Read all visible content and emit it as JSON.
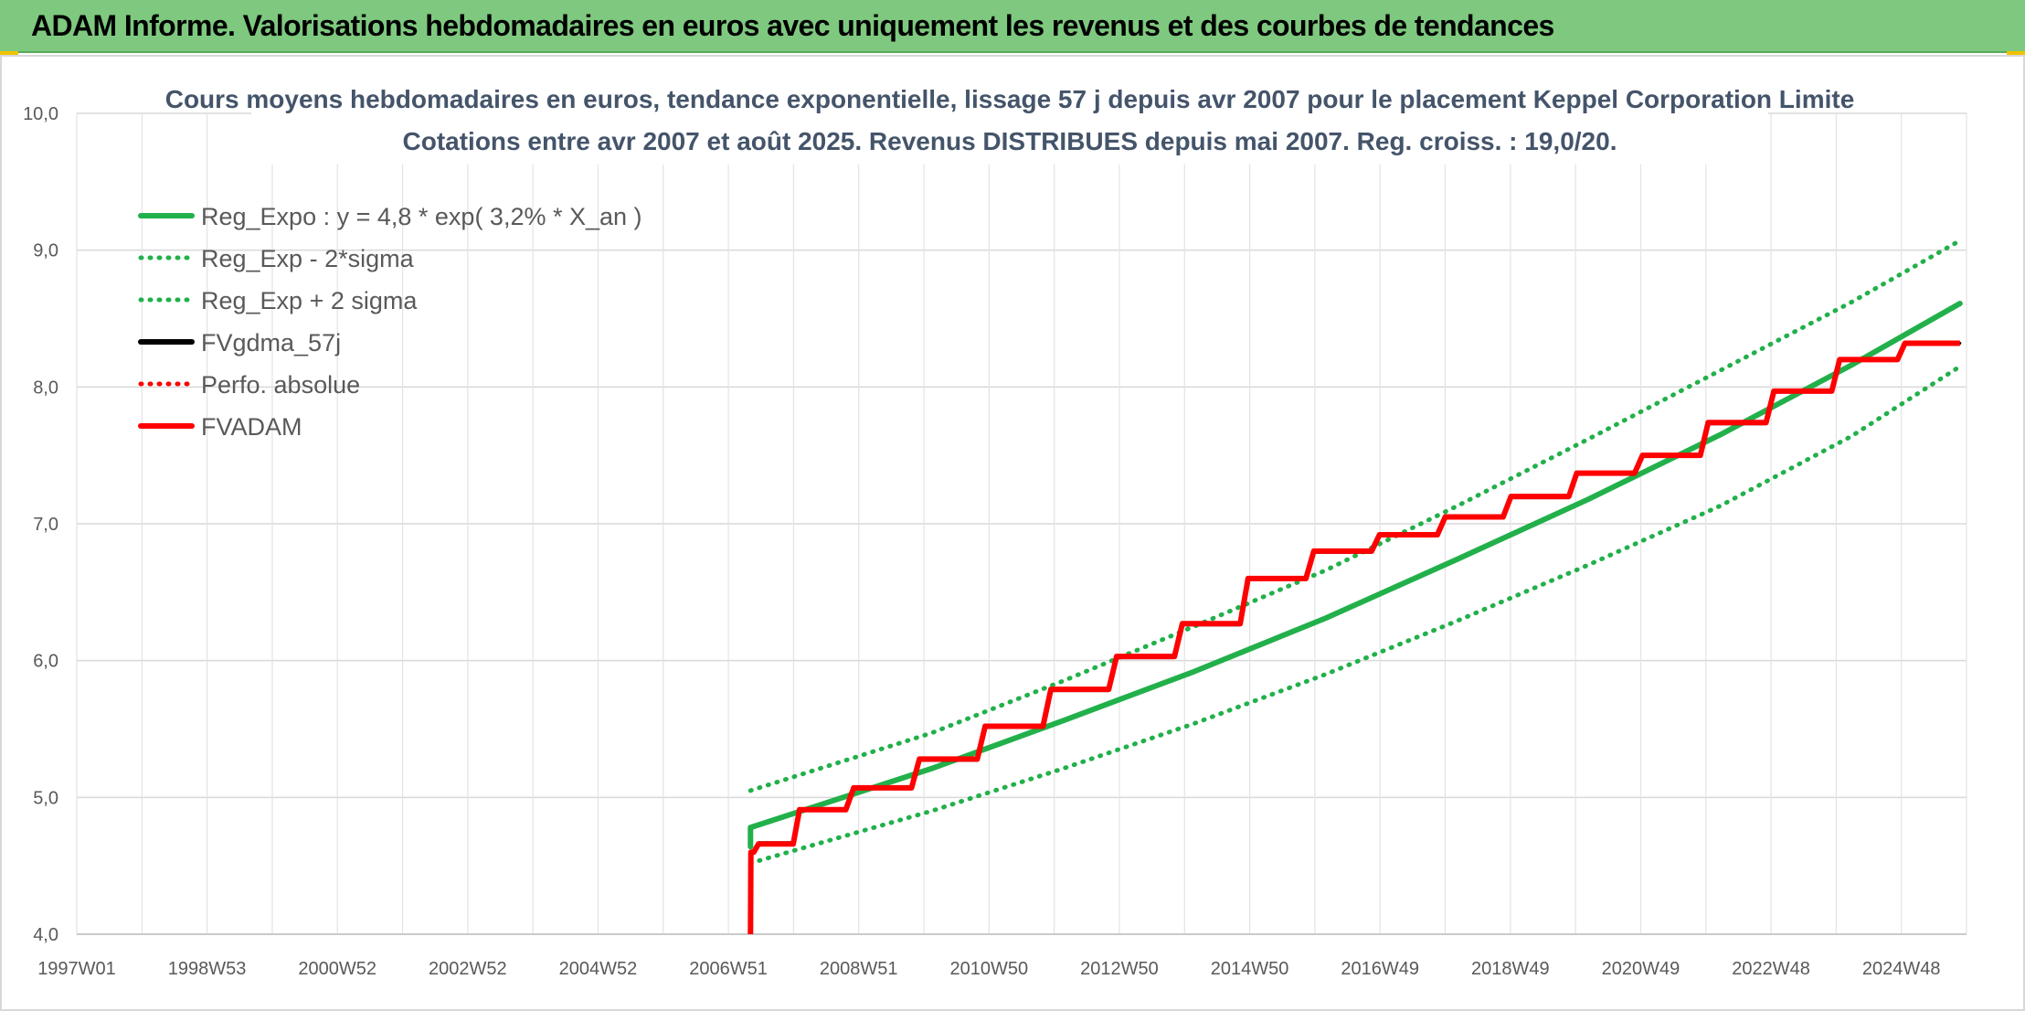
{
  "header": {
    "title": "ADAM Informe. Valorisations hebdomadaires en euros avec uniquement les revenus et des courbes de tendances"
  },
  "chart_data": {
    "type": "line",
    "title": "Cours moyens hebdomadaires en euros, tendance exponentielle, lissage 57 j depuis avr 2007 pour le placement Keppel Corporation Limite",
    "subtitle": "Cotations entre avr 2007 et août 2025. Revenus DISTRIBUES depuis mai 2007. Reg. croiss. : 19,0/20.",
    "xlabel": "",
    "ylabel": "",
    "ylim": [
      4.0,
      10.0
    ],
    "y_ticks": [
      "4,0",
      "5,0",
      "6,0",
      "7,0",
      "8,0",
      "9,0",
      "10,0"
    ],
    "x_ticks": [
      "1997W01",
      "1998W53",
      "2000W52",
      "2002W52",
      "2004W52",
      "2006W51",
      "2008W51",
      "2010W50",
      "2012W50",
      "2014W50",
      "2016W49",
      "2018W49",
      "2020W49",
      "2022W48",
      "2024W48"
    ],
    "xlim": [
      1997.0,
      2025.75
    ],
    "grid": true,
    "legend_position": "top-left",
    "series": [
      {
        "name": "Reg_Expo : y = 4,8 * exp( 3,2% *  X_an )",
        "color": "#22b04b",
        "style": "solid",
        "x": [
          2007.25,
          2010.0,
          2012.0,
          2014.0,
          2016.0,
          2018.0,
          2020.0,
          2022.0,
          2024.0,
          2025.65
        ],
        "y": [
          4.78,
          5.21,
          5.56,
          5.92,
          6.31,
          6.74,
          7.18,
          7.65,
          8.16,
          8.61
        ]
      },
      {
        "name": "Reg_Exp - 2*sigma",
        "color": "#22b04b",
        "style": "dotted",
        "x": [
          2007.25,
          2010.0,
          2012.0,
          2014.0,
          2016.0,
          2018.0,
          2020.0,
          2022.0,
          2024.0,
          2025.65
        ],
        "y": [
          4.52,
          4.9,
          5.21,
          5.54,
          5.9,
          6.29,
          6.7,
          7.13,
          7.64,
          8.15
        ]
      },
      {
        "name": "Reg_Exp + 2 sigma",
        "color": "#22b04b",
        "style": "dotted",
        "x": [
          2007.25,
          2010.0,
          2012.0,
          2014.0,
          2016.0,
          2018.0,
          2020.0,
          2022.0,
          2024.0,
          2025.65
        ],
        "y": [
          5.05,
          5.47,
          5.85,
          6.25,
          6.66,
          7.13,
          7.62,
          8.12,
          8.62,
          9.07
        ]
      },
      {
        "name": "FVgdma_57j",
        "color": "#000000",
        "style": "solid",
        "x": [
          2007.3,
          2007.9,
          2008.7,
          2009.7,
          2010.7,
          2011.7,
          2012.7,
          2013.7,
          2014.7,
          2015.7,
          2016.7,
          2017.7,
          2018.7,
          2019.7,
          2020.7,
          2021.7,
          2022.7,
          2023.7,
          2024.7,
          2025.65
        ],
        "y": [
          4.6,
          4.67,
          4.91,
          5.07,
          5.27,
          5.51,
          5.78,
          6.02,
          6.26,
          6.6,
          6.79,
          6.92,
          7.04,
          7.19,
          7.37,
          7.5,
          7.73,
          7.97,
          8.2,
          8.32
        ]
      },
      {
        "name": "Perfo. absolue",
        "color": "#ff0000",
        "style": "dotted",
        "x": [],
        "y": []
      },
      {
        "name": "FVADAM",
        "color": "#ff0000",
        "style": "solid",
        "x": [
          2007.25,
          2007.3,
          2007.9,
          2008.7,
          2009.7,
          2010.7,
          2011.7,
          2012.7,
          2013.7,
          2014.7,
          2015.7,
          2016.7,
          2017.7,
          2018.7,
          2019.7,
          2020.7,
          2021.7,
          2022.7,
          2023.7,
          2024.7,
          2025.65
        ],
        "y": [
          4.0,
          4.6,
          4.66,
          4.91,
          5.07,
          5.28,
          5.52,
          5.79,
          6.03,
          6.27,
          6.6,
          6.8,
          6.92,
          7.05,
          7.2,
          7.37,
          7.5,
          7.74,
          7.97,
          8.2,
          8.32
        ]
      }
    ]
  }
}
